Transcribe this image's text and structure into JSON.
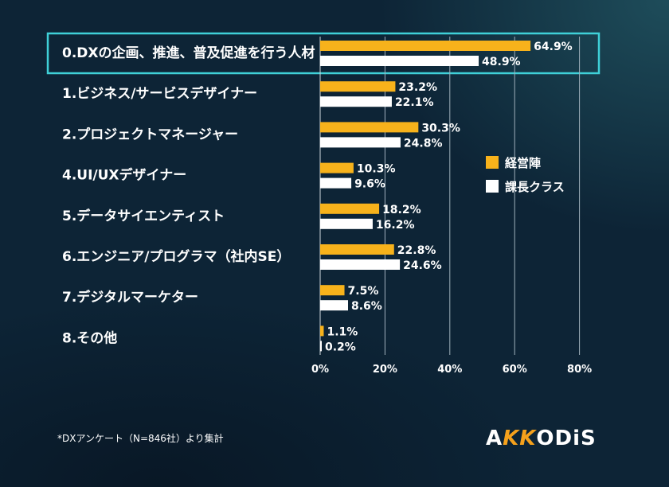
{
  "chart_data": {
    "type": "bar",
    "orientation": "horizontal",
    "categories": [
      "0.DXの企画、推進、普及促進を行う人材",
      "1.ビジネス/サービスデザイナー",
      "2.プロジェクトマネージャー",
      "4.UI/UXデザイナー",
      "5.データサイエンティスト",
      "6.エンジニア/プログラマ（社内SE）",
      "7.デジタルマーケター",
      "8.その他"
    ],
    "series": [
      {
        "name": "経営陣",
        "color": "#f7b21b",
        "values": [
          64.9,
          23.2,
          30.3,
          10.3,
          18.2,
          22.8,
          7.5,
          1.1
        ],
        "labels": [
          "64.9%",
          "23.2%",
          "30.3%",
          "10.3%",
          "18.2%",
          "22.8%",
          "7.5%",
          "1.1%"
        ]
      },
      {
        "name": "課長クラス",
        "color": "#ffffff",
        "values": [
          48.9,
          22.1,
          24.8,
          9.6,
          16.2,
          24.6,
          8.6,
          0.2
        ],
        "labels": [
          "48.9%",
          "22.1%",
          "24.8%",
          "9.6%",
          "16.2%",
          "24.6%",
          "8.6%",
          "0.2%"
        ]
      }
    ],
    "xlim": [
      0,
      80
    ],
    "xticks": [
      0,
      20,
      40,
      60,
      80
    ],
    "xtick_labels": [
      "0%",
      "20%",
      "40%",
      "60%",
      "80%"
    ],
    "grid": true,
    "legend_position": "right",
    "highlighted_category_index": 0,
    "highlight_color": "#3fd0d8"
  },
  "footnote": "*DXアンケート（N=846社）より集計",
  "logo": {
    "prefix": "A",
    "accent": "KK",
    "suffix": "ODiS"
  }
}
